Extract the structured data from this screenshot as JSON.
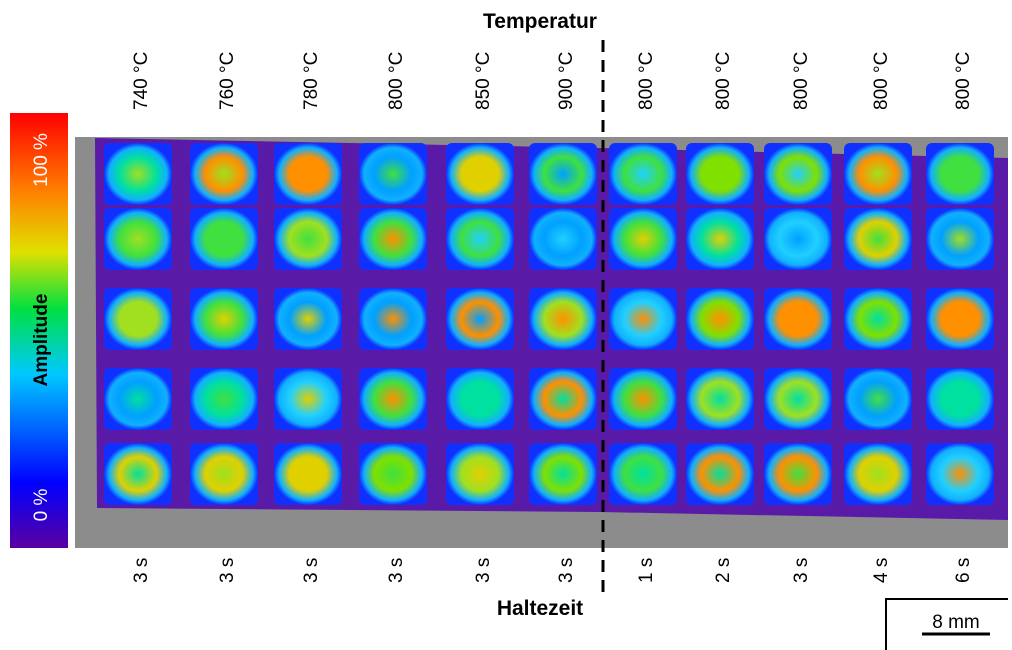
{
  "top_label": "Temperatur",
  "bottom_label": "Haltezeit",
  "colorbar": {
    "label": "Amplitude",
    "max": "100 %",
    "min": "0 %"
  },
  "columns": [
    {
      "temperature": "740 °C",
      "hold_time": "3 s"
    },
    {
      "temperature": "760 °C",
      "hold_time": "3 s"
    },
    {
      "temperature": "780 °C",
      "hold_time": "3 s"
    },
    {
      "temperature": "800 °C",
      "hold_time": "3 s"
    },
    {
      "temperature": "850 °C",
      "hold_time": "3 s"
    },
    {
      "temperature": "900 °C",
      "hold_time": "3 s"
    },
    {
      "temperature": "800 °C",
      "hold_time": "1 s"
    },
    {
      "temperature": "800 °C",
      "hold_time": "2 s"
    },
    {
      "temperature": "800 °C",
      "hold_time": "3 s"
    },
    {
      "temperature": "800 °C",
      "hold_time": "4 s"
    },
    {
      "temperature": "800 °C",
      "hold_time": "6 s"
    }
  ],
  "scale_bar": "8 mm"
}
